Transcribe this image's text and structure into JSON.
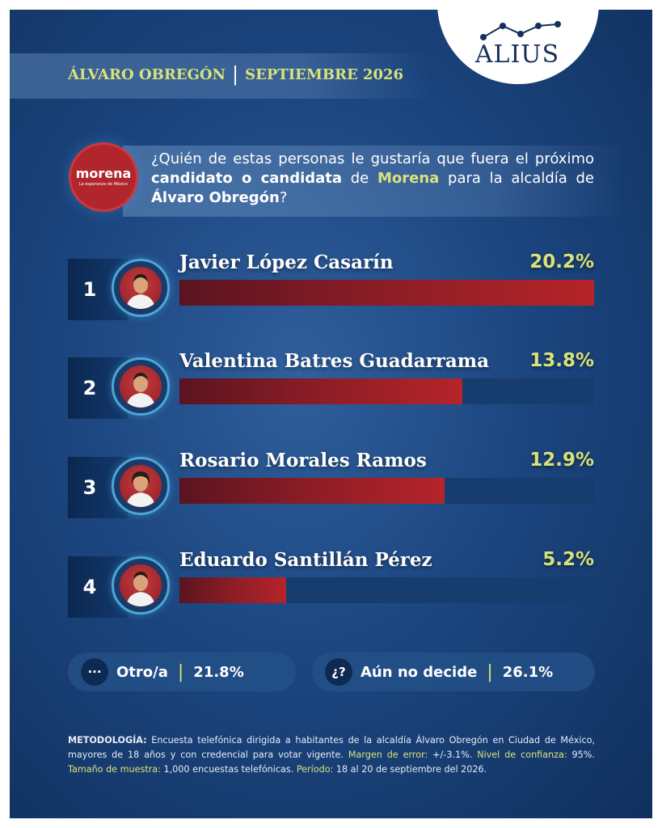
{
  "brand": {
    "name": "ALIUS"
  },
  "header": {
    "place": "ÁLVARO OBREGÓN",
    "separator": "|",
    "date": "SEPTIEMBRE 2026"
  },
  "party_logo": {
    "name": "morena",
    "tagline": "La esperanza de México",
    "color": "#b1262c"
  },
  "question": {
    "part1": "¿Quién de estas personas le gustaría que fuera el próximo ",
    "bold1": "candidato o candidata",
    "part2": " de ",
    "party": "Morena",
    "part3": " para la alcaldía de ",
    "place": "Álvaro Obregón",
    "part4": "?"
  },
  "chart_data": {
    "type": "bar",
    "categories": [
      "Javier López Casarín",
      "Valentina Batres Guadarrama",
      "Rosario Morales Ramos",
      "Eduardo Santillán Pérez"
    ],
    "values": [
      20.2,
      13.8,
      12.9,
      5.2
    ],
    "value_labels": [
      "20.2%",
      "13.8%",
      "12.9%",
      "5.2%"
    ],
    "ranks": [
      "1",
      "2",
      "3",
      "4"
    ],
    "unit": "%",
    "xlim": [
      0,
      20.2
    ]
  },
  "others": [
    {
      "icon": "···",
      "label": "Otro/a",
      "value": "21.8%"
    },
    {
      "icon": "¿?",
      "label": "Aún no decide",
      "value": "26.1%"
    }
  ],
  "methodology": {
    "label1": "METODOLOGÍA:",
    "text1": " Encuesta telefónica dirigida a habitantes de la alcaldía Álvaro Obregón en Ciudad de México, mayores de 18 años y con credencial para votar vigente. ",
    "label2": "Margen de error:",
    "text2": " +/-3.1%. ",
    "label3": "Nivel de confianza:",
    "text3": " 95%. ",
    "label4": "Tamaño de muestra:",
    "text4": " 1,000 encuestas telefónicas. ",
    "label5": "Período:",
    "text5": " 18 al 20 de septiembre del 2026."
  },
  "colors": {
    "accent_yellow": "#d9e27a",
    "bar_red": "#b52429",
    "track_blue": "#173c6e",
    "background_blue": "#1c4680"
  }
}
